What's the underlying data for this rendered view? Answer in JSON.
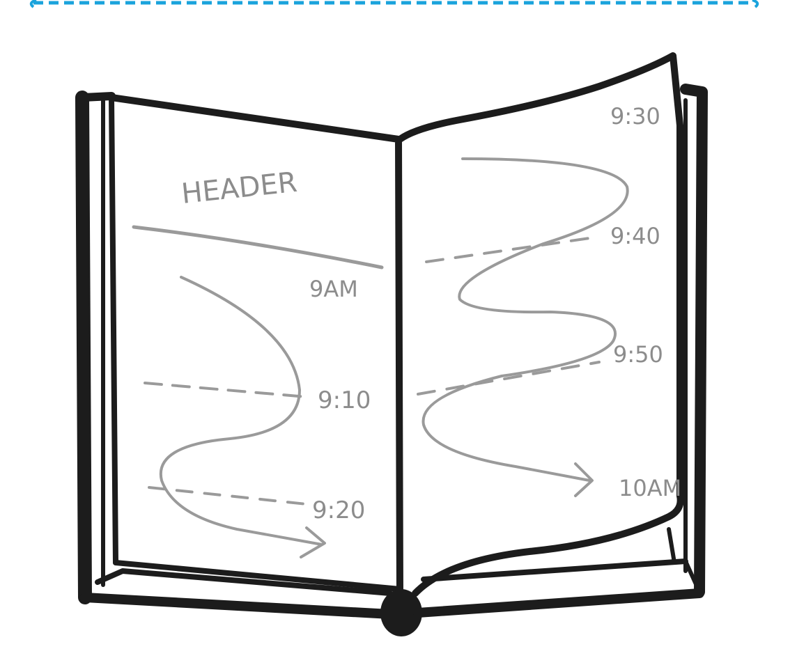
{
  "colors": {
    "accent_dashed_rule": "#1aa3dc",
    "ink": "#1c1c1c",
    "pencil": "#9a9a9a",
    "page": "#ffffff"
  },
  "left_page": {
    "header_label": "HEADER",
    "times": [
      "9AM",
      "9:10",
      "9:20"
    ]
  },
  "right_page": {
    "times": [
      "9:30",
      "9:40",
      "9:50",
      "10AM"
    ]
  }
}
